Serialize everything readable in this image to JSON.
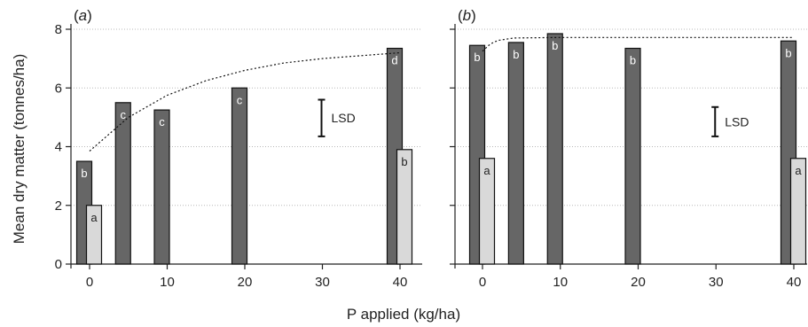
{
  "chart_data": [
    {
      "type": "bar",
      "panel": "(a)",
      "x": [
        0,
        5,
        10,
        20,
        40
      ],
      "series": [
        {
          "color": "#666666",
          "x": [
            0,
            5,
            10,
            20,
            40
          ],
          "values": [
            3.5,
            5.5,
            5.25,
            6.0,
            7.35
          ],
          "labels": [
            "b",
            "c",
            "c",
            "c",
            "d"
          ]
        },
        {
          "color": "#d9d9d9",
          "x": [
            0,
            40
          ],
          "values": [
            2.0,
            3.9
          ],
          "labels": [
            "a",
            "b"
          ]
        }
      ],
      "fit_curve": [
        [
          0,
          3.85
        ],
        [
          5,
          5.0
        ],
        [
          10,
          5.75
        ],
        [
          15,
          6.25
        ],
        [
          20,
          6.6
        ],
        [
          25,
          6.85
        ],
        [
          30,
          7.0
        ],
        [
          35,
          7.1
        ],
        [
          40,
          7.2
        ]
      ],
      "lsd": {
        "label": "LSD",
        "x": 30,
        "ymin": 4.35,
        "ymax": 5.6
      },
      "xlim": [
        -2.5,
        42.5
      ],
      "ylim": [
        0,
        8
      ],
      "xticks": [
        0,
        10,
        20,
        30,
        40
      ],
      "yticks": [
        0,
        2,
        4,
        6,
        8
      ],
      "show_ytick_labels": true,
      "grid": true
    },
    {
      "type": "bar",
      "panel": "(b)",
      "x": [
        0,
        5,
        10,
        20,
        40
      ],
      "series": [
        {
          "color": "#666666",
          "x": [
            0,
            5,
            10,
            20,
            40
          ],
          "values": [
            7.45,
            7.55,
            7.85,
            7.35,
            7.6
          ],
          "labels": [
            "b",
            "b",
            "b",
            "b",
            "b"
          ]
        },
        {
          "color": "#d9d9d9",
          "x": [
            0,
            40
          ],
          "values": [
            3.6,
            3.6
          ],
          "labels": [
            "a",
            "a"
          ]
        }
      ],
      "fit_curve": [
        [
          0,
          7.25
        ],
        [
          1,
          7.5
        ],
        [
          2,
          7.62
        ],
        [
          4,
          7.7
        ],
        [
          10,
          7.72
        ],
        [
          20,
          7.72
        ],
        [
          30,
          7.72
        ],
        [
          40,
          7.72
        ]
      ],
      "lsd": {
        "label": "LSD",
        "x": 30,
        "ymin": 4.35,
        "ymax": 5.35
      },
      "xlim": [
        -2.5,
        42.5
      ],
      "ylim": [
        0,
        8
      ],
      "xticks": [
        0,
        10,
        20,
        30,
        40
      ],
      "yticks": [
        0,
        2,
        4,
        6,
        8
      ],
      "show_ytick_labels": false,
      "grid": true
    }
  ],
  "ylabel": "Mean dry matter (tonnes/ha)",
  "xlabel": "P applied (kg/ha)"
}
